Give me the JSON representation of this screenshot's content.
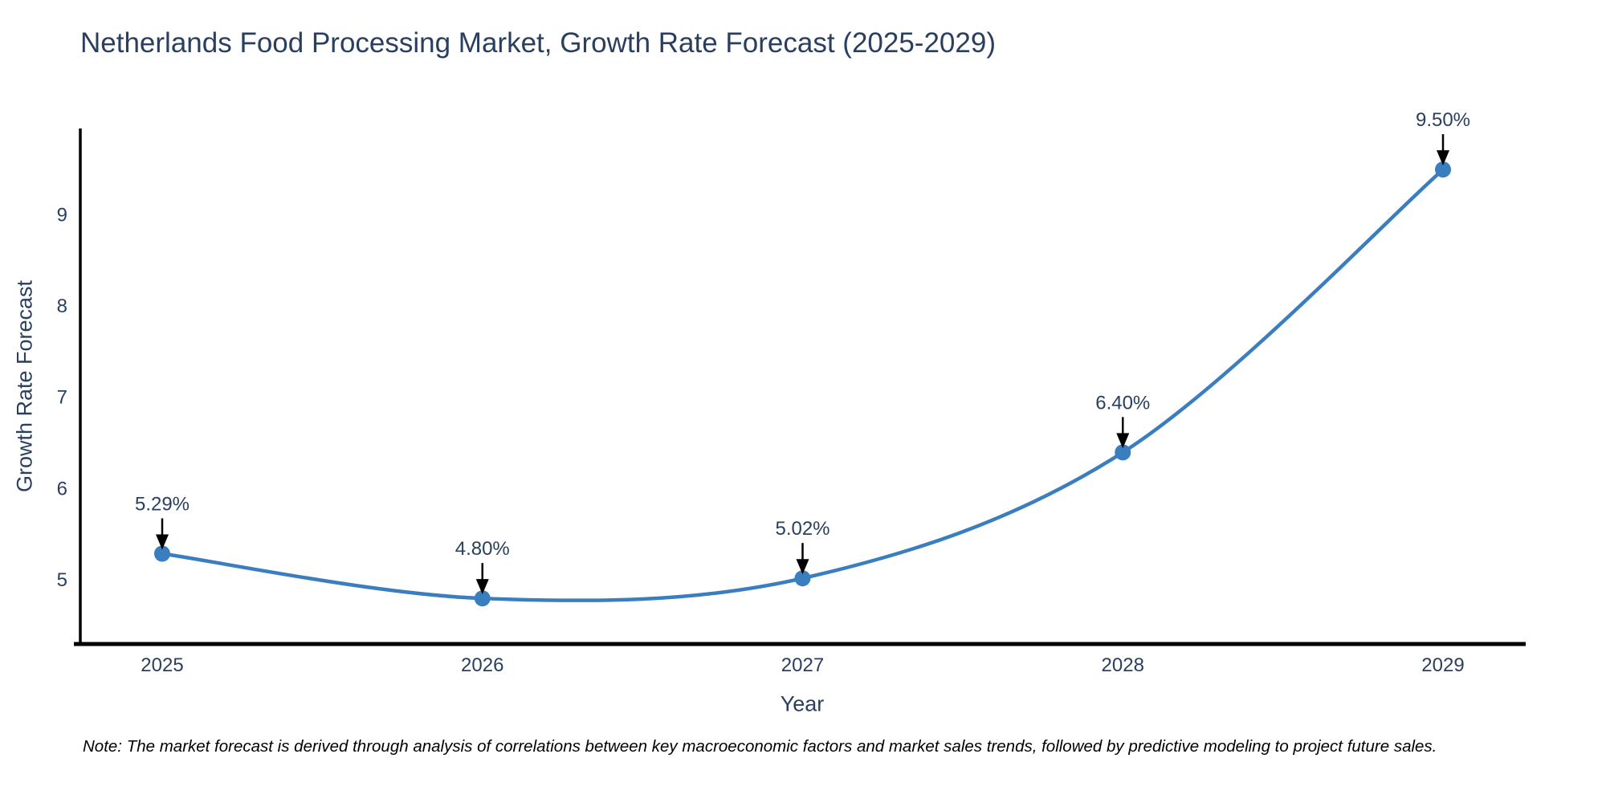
{
  "title": "Netherlands Food Processing Market, Growth Rate Forecast (2025-2029)",
  "note": "Note: The market forecast is derived through analysis of correlations between key macroeconomic factors and market sales trends, followed by predictive modeling to project future sales.",
  "colors": {
    "line": "#3a7ebf",
    "marker": "#3a7ebf",
    "text": "#2a3f5f",
    "axis": "#000000",
    "arrow": "#000000",
    "background": "#ffffff"
  },
  "chart_data": {
    "type": "line",
    "title": "Netherlands Food Processing Market, Growth Rate Forecast (2025-2029)",
    "xlabel": "Year",
    "ylabel": "Growth Rate Forecast",
    "x": [
      2025,
      2026,
      2027,
      2028,
      2029
    ],
    "series": [
      {
        "name": "Growth Rate Forecast",
        "values": [
          5.29,
          4.8,
          5.02,
          6.4,
          9.5
        ]
      }
    ],
    "point_labels": [
      "5.29%",
      "4.80%",
      "5.02%",
      "6.40%",
      "9.50%"
    ],
    "yticks": [
      5,
      6,
      7,
      8,
      9
    ],
    "ylim": [
      4.3,
      9.95
    ],
    "line_shape": "spline",
    "markers": true,
    "grid": false,
    "legend_position": "none",
    "annotations_have_arrows": true
  }
}
